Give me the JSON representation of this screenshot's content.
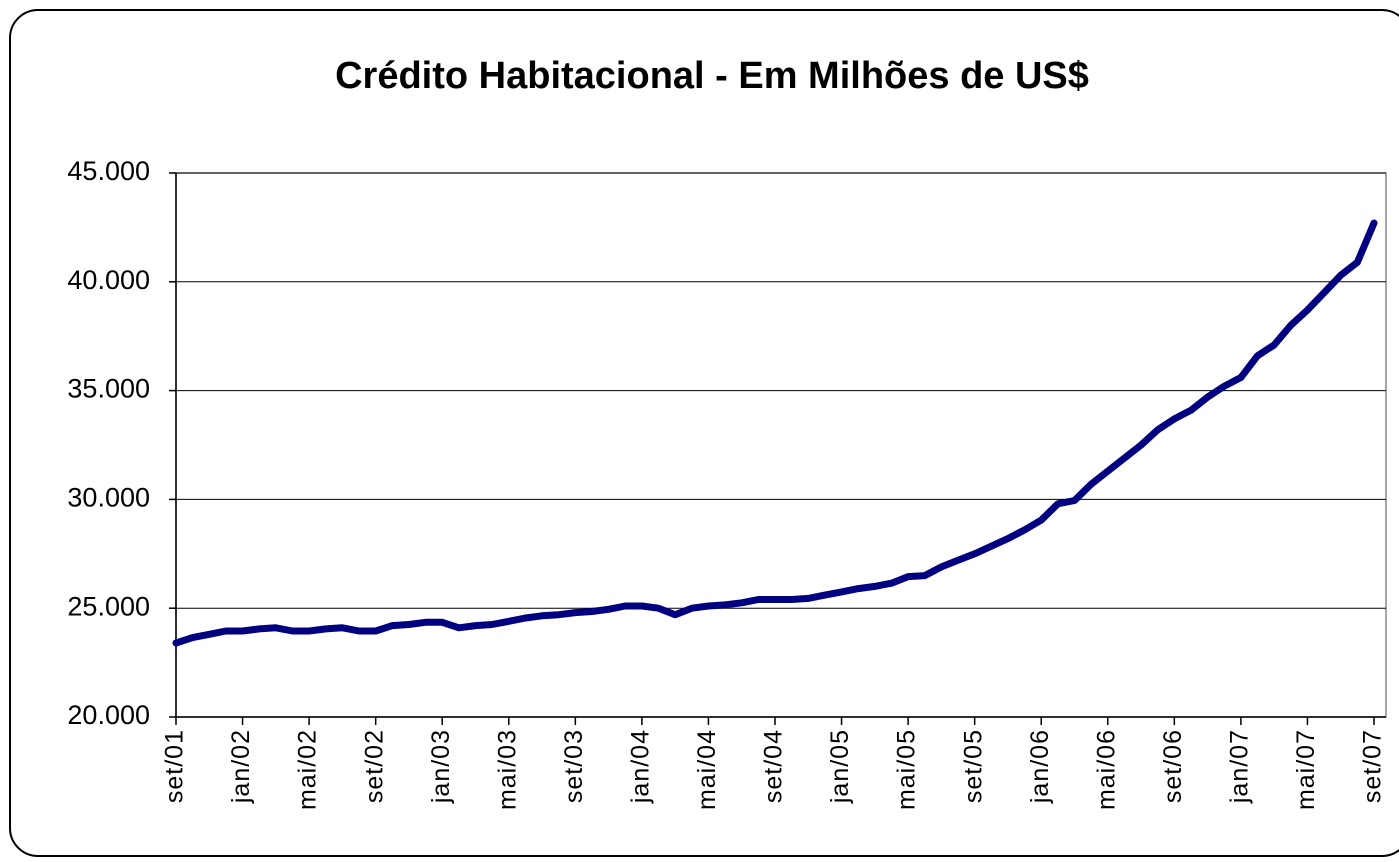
{
  "chart_data": {
    "type": "line",
    "title": "Crédito Habitacional - Em Milhões de US$",
    "categories": [
      "set/01",
      null,
      null,
      null,
      "jan/02",
      null,
      null,
      null,
      "mai/02",
      null,
      null,
      null,
      "set/02",
      null,
      null,
      null,
      "jan/03",
      null,
      null,
      null,
      "mai/03",
      null,
      null,
      null,
      "set/03",
      null,
      null,
      null,
      "jan/04",
      null,
      null,
      null,
      "mai/04",
      null,
      null,
      null,
      "set/04",
      null,
      null,
      null,
      "jan/05",
      null,
      null,
      null,
      "mai/05",
      null,
      null,
      null,
      "set/05",
      null,
      null,
      null,
      "jan/06",
      null,
      null,
      null,
      "mai/06",
      null,
      null,
      null,
      "set/06",
      null,
      null,
      null,
      "jan/07",
      null,
      null,
      null,
      "mai/07",
      null,
      null,
      null,
      "set/07"
    ],
    "series": [
      {
        "name": "Crédito Habitacional",
        "color": "#000080",
        "values": [
          23400,
          23650,
          23800,
          23950,
          23950,
          24050,
          24100,
          23950,
          23950,
          24050,
          24100,
          23950,
          23950,
          24200,
          24250,
          24350,
          24350,
          24100,
          24200,
          24250,
          24400,
          24550,
          24650,
          24700,
          24800,
          24850,
          24950,
          25100,
          25100,
          25000,
          24700,
          25000,
          25100,
          25150,
          25250,
          25400,
          25400,
          25400,
          25450,
          25600,
          25750,
          25900,
          26000,
          26150,
          26450,
          26500,
          26900,
          27200,
          27500,
          27850,
          28200,
          28600,
          29050,
          29800,
          29950,
          30700,
          31300,
          31900,
          32500,
          33200,
          33700,
          34100,
          34700,
          35200,
          35600,
          36600,
          37100,
          38000,
          38700,
          39500,
          40300,
          40900,
          42700
        ]
      }
    ],
    "ylim": [
      20000,
      45000
    ],
    "yticks": [
      {
        "value": 20000,
        "label": "20.000"
      },
      {
        "value": 25000,
        "label": "25.000"
      },
      {
        "value": 30000,
        "label": "30.000"
      },
      {
        "value": 35000,
        "label": "35.000"
      },
      {
        "value": 40000,
        "label": "40.000"
      },
      {
        "value": 45000,
        "label": "45.000"
      }
    ],
    "grid": true
  }
}
